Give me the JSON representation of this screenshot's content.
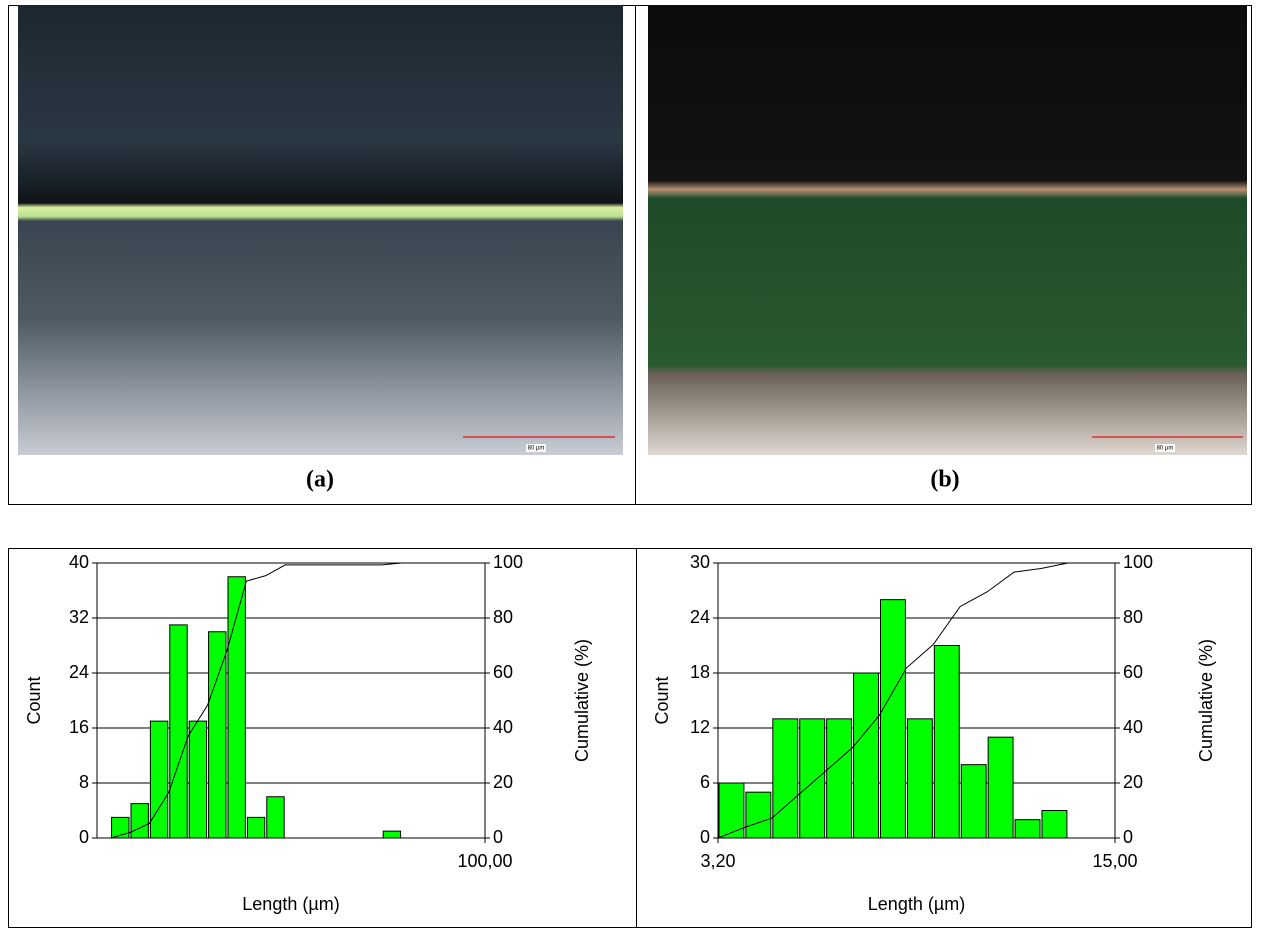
{
  "panels": [
    {
      "label": "(a)",
      "scale_bar": "80 µm"
    },
    {
      "label": "(b)",
      "scale_bar": "80 µm"
    }
  ],
  "chart_data": [
    {
      "type": "histogram",
      "xlabel": "Length (µm)",
      "ylabel": "Count",
      "y2label": "Cumulative (%)",
      "bins": [
        3.5,
        8.5,
        13.5,
        18.5,
        23.5,
        28.5,
        33.5,
        38.5,
        43.5,
        48.5,
        53.5,
        58.5,
        63.5,
        68.5,
        73.5,
        78.5
      ],
      "values": [
        3,
        5,
        17,
        31,
        17,
        30,
        38,
        3,
        6,
        0,
        0,
        0,
        0,
        0,
        1
      ],
      "cumulative": [
        0,
        2,
        5.3,
        16.6,
        37.1,
        48.3,
        68.2,
        93.4,
        95.4,
        99.3,
        99.3,
        99.3,
        99.3,
        99.3,
        99.3,
        100
      ],
      "color": "#00ff00",
      "line_color": "#000000",
      "xlim": [
        0,
        100
      ],
      "xticks": [
        {
          "value": 100,
          "label": "100,00"
        }
      ],
      "ylim": [
        0,
        40
      ],
      "yticks": [
        0,
        8,
        16,
        24,
        32,
        40
      ],
      "y2lim": [
        0,
        100
      ],
      "y2ticks": [
        0,
        20,
        40,
        60,
        80,
        100
      ],
      "grid": true
    },
    {
      "type": "histogram",
      "xlabel": "Length (µm)",
      "ylabel": "Count",
      "y2label": "Cumulative (%)",
      "bins": [
        3.2,
        4.0,
        4.8,
        5.6,
        6.4,
        7.2,
        8.0,
        8.8,
        9.6,
        10.4,
        11.2,
        12.0,
        12.8,
        13.6
      ],
      "values": [
        6,
        5,
        13,
        13,
        13,
        18,
        26,
        13,
        21,
        8,
        11,
        2,
        3
      ],
      "cumulative": [
        0,
        3.9,
        7.2,
        15.8,
        24.3,
        32.9,
        44.7,
        61.8,
        70.4,
        84.2,
        89.5,
        96.7,
        98.0,
        100
      ],
      "color": "#00ff00",
      "line_color": "#000000",
      "xlim": [
        3.2,
        15
      ],
      "xticks": [
        {
          "value": 3.2,
          "label": "3,20"
        },
        {
          "value": 15,
          "label": "15,00"
        }
      ],
      "ylim": [
        0,
        30
      ],
      "yticks": [
        0,
        6,
        12,
        18,
        24,
        30
      ],
      "y2lim": [
        0,
        100
      ],
      "y2ticks": [
        0,
        20,
        40,
        60,
        80,
        100
      ],
      "grid": true
    }
  ]
}
